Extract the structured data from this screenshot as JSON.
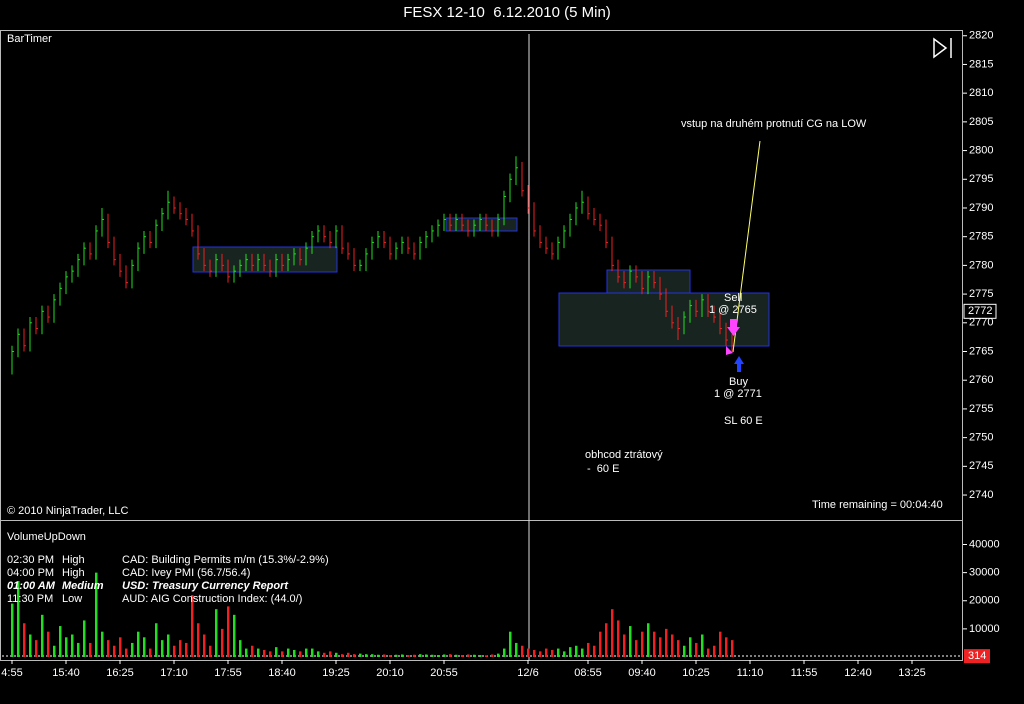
{
  "chart_data": [
    {
      "type": "ohlc",
      "title": "FESX 12-10  6.12.2010 (5 Min)",
      "ylim": [
        2736,
        2821
      ],
      "yticks": [
        2740,
        2745,
        2750,
        2755,
        2760,
        2765,
        2770,
        2775,
        2780,
        2785,
        2790,
        2795,
        2800,
        2805,
        2810,
        2815,
        2820
      ],
      "up_color": "#22dd22",
      "down_color": "#ee2222",
      "last_price": 2772,
      "annotations": [
        "BarTimer",
        "© 2010 NinjaTrader, LLC",
        "Time remaining = 00:04:40",
        "vstup na druhém protnutí CG na LOW",
        "Sell",
        "1 @ 2765",
        "Buy",
        "1 @ 2771",
        "SL 60 E",
        "obhcod ztrátový",
        "-  60 E"
      ],
      "high": [
        2766,
        2769,
        2769,
        2771,
        2771,
        2773,
        2773,
        2775,
        2777,
        2779,
        2780,
        2782,
        2784,
        2784,
        2787,
        2790,
        2789,
        2785,
        2782,
        2780,
        2781,
        2784,
        2786,
        2786,
        2788,
        2790,
        2793,
        2792,
        2791,
        2790,
        2789,
        2787,
        2783,
        2781,
        2782,
        2782,
        2781,
        2780,
        2781,
        2782,
        2782,
        2782,
        2782,
        2781,
        2782,
        2782,
        2782,
        2783,
        2783,
        2784,
        2786,
        2787,
        2787,
        2786,
        2787,
        2787,
        2784,
        2783,
        2781,
        2783,
        2785,
        2786,
        2786,
        2785,
        2784,
        2785,
        2785,
        2784,
        2785,
        2786,
        2787,
        2788,
        2789,
        2789,
        2789,
        2789,
        2788,
        2788,
        2789,
        2789,
        2788,
        2789,
        2793,
        2796,
        2799,
        2798,
        2794,
        2791,
        2787,
        2785,
        2784,
        2785,
        2787,
        2789,
        2791,
        2793,
        2792,
        2790,
        2789,
        2788,
        2785,
        2781,
        2779,
        2780,
        2780,
        2779,
        2779,
        2779,
        2778,
        2776,
        2773,
        2771,
        2772,
        2774,
        2774,
        2775,
        2775,
        2773,
        2772,
        2770,
        2768,
        null,
        null,
        null,
        null,
        null,
        null,
        null,
        null,
        null,
        null,
        null,
        null,
        null,
        null,
        null,
        null,
        null,
        null,
        null,
        null,
        null,
        null,
        null,
        null,
        null,
        null,
        null,
        null,
        null,
        null,
        null,
        null,
        null,
        null
      ],
      "low": [
        2761,
        2764,
        2765,
        2765,
        2768,
        2768,
        2770,
        2770,
        2773,
        2775,
        2777,
        2778,
        2780,
        2781,
        2781,
        2785,
        2783,
        2780,
        2778,
        2776,
        2776,
        2779,
        2782,
        2783,
        2783,
        2786,
        2788,
        2789,
        2788,
        2787,
        2785,
        2781,
        2779,
        2778,
        2778,
        2779,
        2777,
        2777,
        2778,
        2779,
        2779,
        2779,
        2779,
        2778,
        2778,
        2779,
        2779,
        2780,
        2780,
        2780,
        2782,
        2784,
        2784,
        2783,
        2783,
        2782,
        2781,
        2779,
        2779,
        2779,
        2781,
        2783,
        2783,
        2781,
        2781,
        2782,
        2782,
        2781,
        2781,
        2783,
        2784,
        2785,
        2786,
        2786,
        2786,
        2786,
        2785,
        2785,
        2786,
        2786,
        2785,
        2785,
        2787,
        2791,
        2794,
        2792,
        2789,
        2785,
        2783,
        2782,
        2781,
        2781,
        2783,
        2785,
        2787,
        2789,
        2788,
        2787,
        2786,
        2783,
        2779,
        2777,
        2776,
        2776,
        2777,
        2775,
        2775,
        2776,
        2774,
        2771,
        2769,
        2767,
        2768,
        2770,
        2771,
        2771,
        2771,
        2770,
        2768,
        2766,
        2765,
        null,
        null,
        null,
        null,
        null,
        null,
        null,
        null,
        null,
        null,
        null,
        null,
        null,
        null,
        null,
        null,
        null,
        null,
        null,
        null,
        null,
        null,
        null,
        null,
        null,
        null,
        null,
        null,
        null,
        null,
        null,
        null,
        null,
        null
      ],
      "close": [
        2765,
        2768,
        2766,
        2770,
        2769,
        2772,
        2771,
        2774,
        2776,
        2778,
        2779,
        2781,
        2783,
        2782,
        2786,
        2788,
        2784,
        2781,
        2779,
        2777,
        2780,
        2783,
        2785,
        2784,
        2787,
        2789,
        2791,
        2790,
        2789,
        2788,
        2786,
        2782,
        2780,
        2779,
        2781,
        2780,
        2778,
        2779,
        2780,
        2781,
        2780,
        2781,
        2780,
        2779,
        2781,
        2780,
        2781,
        2782,
        2781,
        2783,
        2785,
        2786,
        2785,
        2784,
        2786,
        2783,
        2782,
        2780,
        2780,
        2782,
        2784,
        2785,
        2784,
        2782,
        2783,
        2784,
        2783,
        2782,
        2784,
        2785,
        2786,
        2787,
        2788,
        2787,
        2788,
        2787,
        2786,
        2787,
        2788,
        2787,
        2786,
        2788,
        2792,
        2795,
        2797,
        2793,
        2790,
        2786,
        2784,
        2783,
        2782,
        2784,
        2786,
        2788,
        2790,
        2791,
        2789,
        2788,
        2787,
        2784,
        2780,
        2778,
        2777,
        2779,
        2778,
        2776,
        2778,
        2777,
        2775,
        2772,
        2770,
        2769,
        2771,
        2773,
        2772,
        2774,
        2772,
        2771,
        2769,
        2767,
        2766,
        null,
        null,
        null,
        null,
        null,
        null,
        null,
        null,
        null,
        null,
        null,
        null,
        null,
        null,
        null,
        null,
        null,
        null,
        null,
        null,
        null,
        null,
        null,
        null,
        null,
        null,
        null,
        null,
        null,
        null,
        null,
        null,
        null,
        null
      ]
    },
    {
      "type": "bar",
      "title": "VolumeUpDown",
      "categories": [
        "4:55",
        null,
        null,
        null,
        null,
        null,
        null,
        null,
        null,
        "15:40",
        null,
        null,
        null,
        null,
        null,
        null,
        null,
        null,
        "16:25",
        null,
        null,
        null,
        null,
        null,
        null,
        null,
        null,
        "17:10",
        null,
        null,
        null,
        null,
        null,
        null,
        null,
        null,
        "17:55",
        null,
        null,
        null,
        null,
        null,
        null,
        null,
        null,
        "18:40",
        null,
        null,
        null,
        null,
        null,
        null,
        null,
        null,
        "19:25",
        null,
        null,
        null,
        null,
        null,
        null,
        null,
        null,
        "20:10",
        null,
        null,
        null,
        null,
        null,
        null,
        null,
        null,
        "20:55",
        null,
        null,
        null,
        null,
        null,
        null,
        null,
        null,
        null,
        null,
        null,
        null,
        null,
        "12/6",
        null,
        null,
        null,
        null,
        null,
        null,
        null,
        null,
        null,
        "08:55",
        null,
        null,
        null,
        null,
        null,
        null,
        null,
        null,
        "09:40",
        null,
        null,
        null,
        null,
        null,
        null,
        null,
        null,
        "10:25",
        null,
        null,
        null,
        null,
        null,
        null,
        null,
        null,
        "11:10",
        null,
        null,
        null,
        null,
        null,
        null,
        null,
        null,
        "11:55",
        null,
        null,
        null,
        null,
        null,
        null,
        null,
        null,
        "12:40",
        null,
        null,
        null,
        null,
        null,
        null,
        null,
        null,
        "13:25",
        null,
        null,
        null,
        null
      ],
      "values": [
        19000,
        27000,
        12000,
        8000,
        6000,
        15000,
        9000,
        4000,
        11000,
        7000,
        8000,
        5000,
        13000,
        5000,
        30000,
        9000,
        6000,
        4000,
        7000,
        3000,
        5000,
        9000,
        7000,
        3000,
        12000,
        6000,
        8000,
        4000,
        6000,
        5000,
        22000,
        12000,
        8000,
        4000,
        17000,
        10000,
        18000,
        15000,
        6000,
        3000,
        4000,
        3000,
        2500,
        2000,
        3500,
        2000,
        3000,
        2500,
        2000,
        3000,
        3000,
        2000,
        1500,
        2000,
        1500,
        1000,
        1500,
        1000,
        1200,
        1000,
        1000,
        800,
        900,
        700,
        800,
        900,
        700,
        800,
        1000,
        900,
        800,
        700,
        900,
        1000,
        800,
        700,
        900,
        800,
        700,
        600,
        900,
        1200,
        3000,
        9000,
        5000,
        4000,
        3000,
        2500,
        2000,
        3000,
        2500,
        3000,
        2000,
        3500,
        4000,
        3000,
        5000,
        4000,
        9000,
        12000,
        17000,
        13000,
        8000,
        11000,
        6000,
        9000,
        12000,
        9000,
        7000,
        10000,
        8000,
        6000,
        4000,
        7000,
        5000,
        8000,
        3000,
        4000,
        9000,
        7000,
        6000,
        null,
        null,
        null,
        null,
        null,
        null,
        null,
        null,
        null,
        null,
        null,
        null,
        null,
        null,
        null,
        null,
        null,
        null,
        null,
        null,
        null,
        null,
        null,
        null,
        null,
        null,
        null,
        null,
        null,
        null,
        null,
        null,
        null,
        null
      ],
      "ylim": [
        0,
        48000
      ],
      "yticks": [
        10000,
        20000,
        30000,
        40000
      ],
      "last_volume": 314,
      "events": [
        {
          "time": "02:30 PM",
          "impact": "High",
          "text": "CAD: Building Permits m/m (15.3%/-2.9%)",
          "color": "#ee2222"
        },
        {
          "time": "04:00 PM",
          "impact": "High",
          "text": "CAD: Ivey PMI (56.7/56.4)",
          "color": "#ee2222"
        },
        {
          "time": "01:00 AM",
          "impact": "Medium",
          "text": "USD: Treasury Currency Report",
          "color": "#1f8a1f"
        },
        {
          "time": "11:30 PM",
          "impact": "Low",
          "text": "AUD: AIG Construction Index: (44.0/)",
          "color": "#1a1acc"
        }
      ]
    }
  ]
}
